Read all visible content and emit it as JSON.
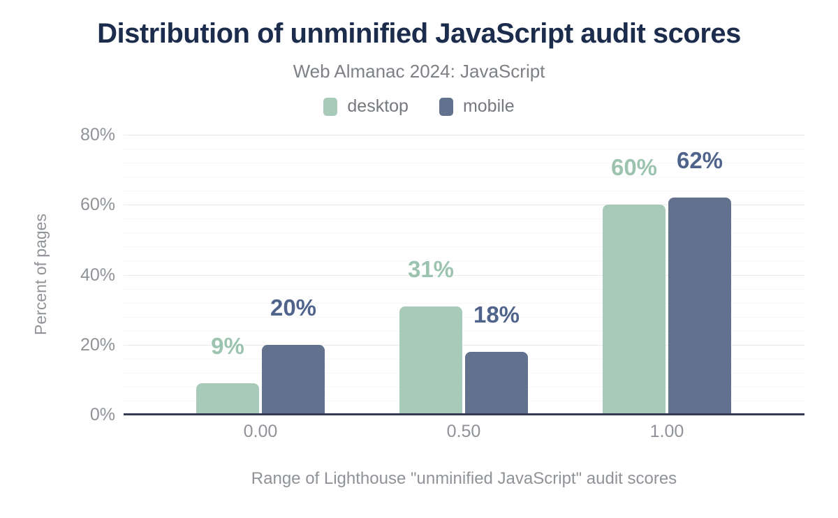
{
  "chart_data": {
    "type": "bar",
    "title": "Distribution of unminified JavaScript audit scores",
    "subtitle": "Web Almanac 2024: JavaScript",
    "categories": [
      "0.00",
      "0.50",
      "1.00"
    ],
    "series": [
      {
        "name": "desktop",
        "color": "#a8cab8",
        "label_color": "#9cc3af",
        "values": [
          9,
          31,
          60
        ],
        "labels": [
          "9%",
          "31%",
          "60%"
        ]
      },
      {
        "name": "mobile",
        "color": "#61718e",
        "label_color": "#50648b",
        "values": [
          20,
          18,
          62
        ],
        "labels": [
          "20%",
          "18%",
          "62%"
        ]
      }
    ],
    "xlabel": "Range of Lighthouse \"unminified JavaScript\" audit scores",
    "ylabel": "Percent of pages",
    "ylim": [
      0,
      80
    ],
    "yticks": [
      {
        "value": 0,
        "label": "0%"
      },
      {
        "value": 20,
        "label": "20%"
      },
      {
        "value": 40,
        "label": "40%"
      },
      {
        "value": 60,
        "label": "60%"
      },
      {
        "value": 80,
        "label": "80%"
      }
    ],
    "major_grid_interval": 20,
    "minor_grid_interval": 4,
    "grid": true,
    "legend_position": "top",
    "value_labels_shown": true
  },
  "colors": {
    "title": "#1c2c4c",
    "subtitle": "#7d8186",
    "legend_text": "#75797e",
    "tick_text": "#8f9398",
    "axis_line": "#323b52",
    "grid_major": "#e9e9e9",
    "grid_minor": "#f7f7f7",
    "background": "#ffffff"
  }
}
